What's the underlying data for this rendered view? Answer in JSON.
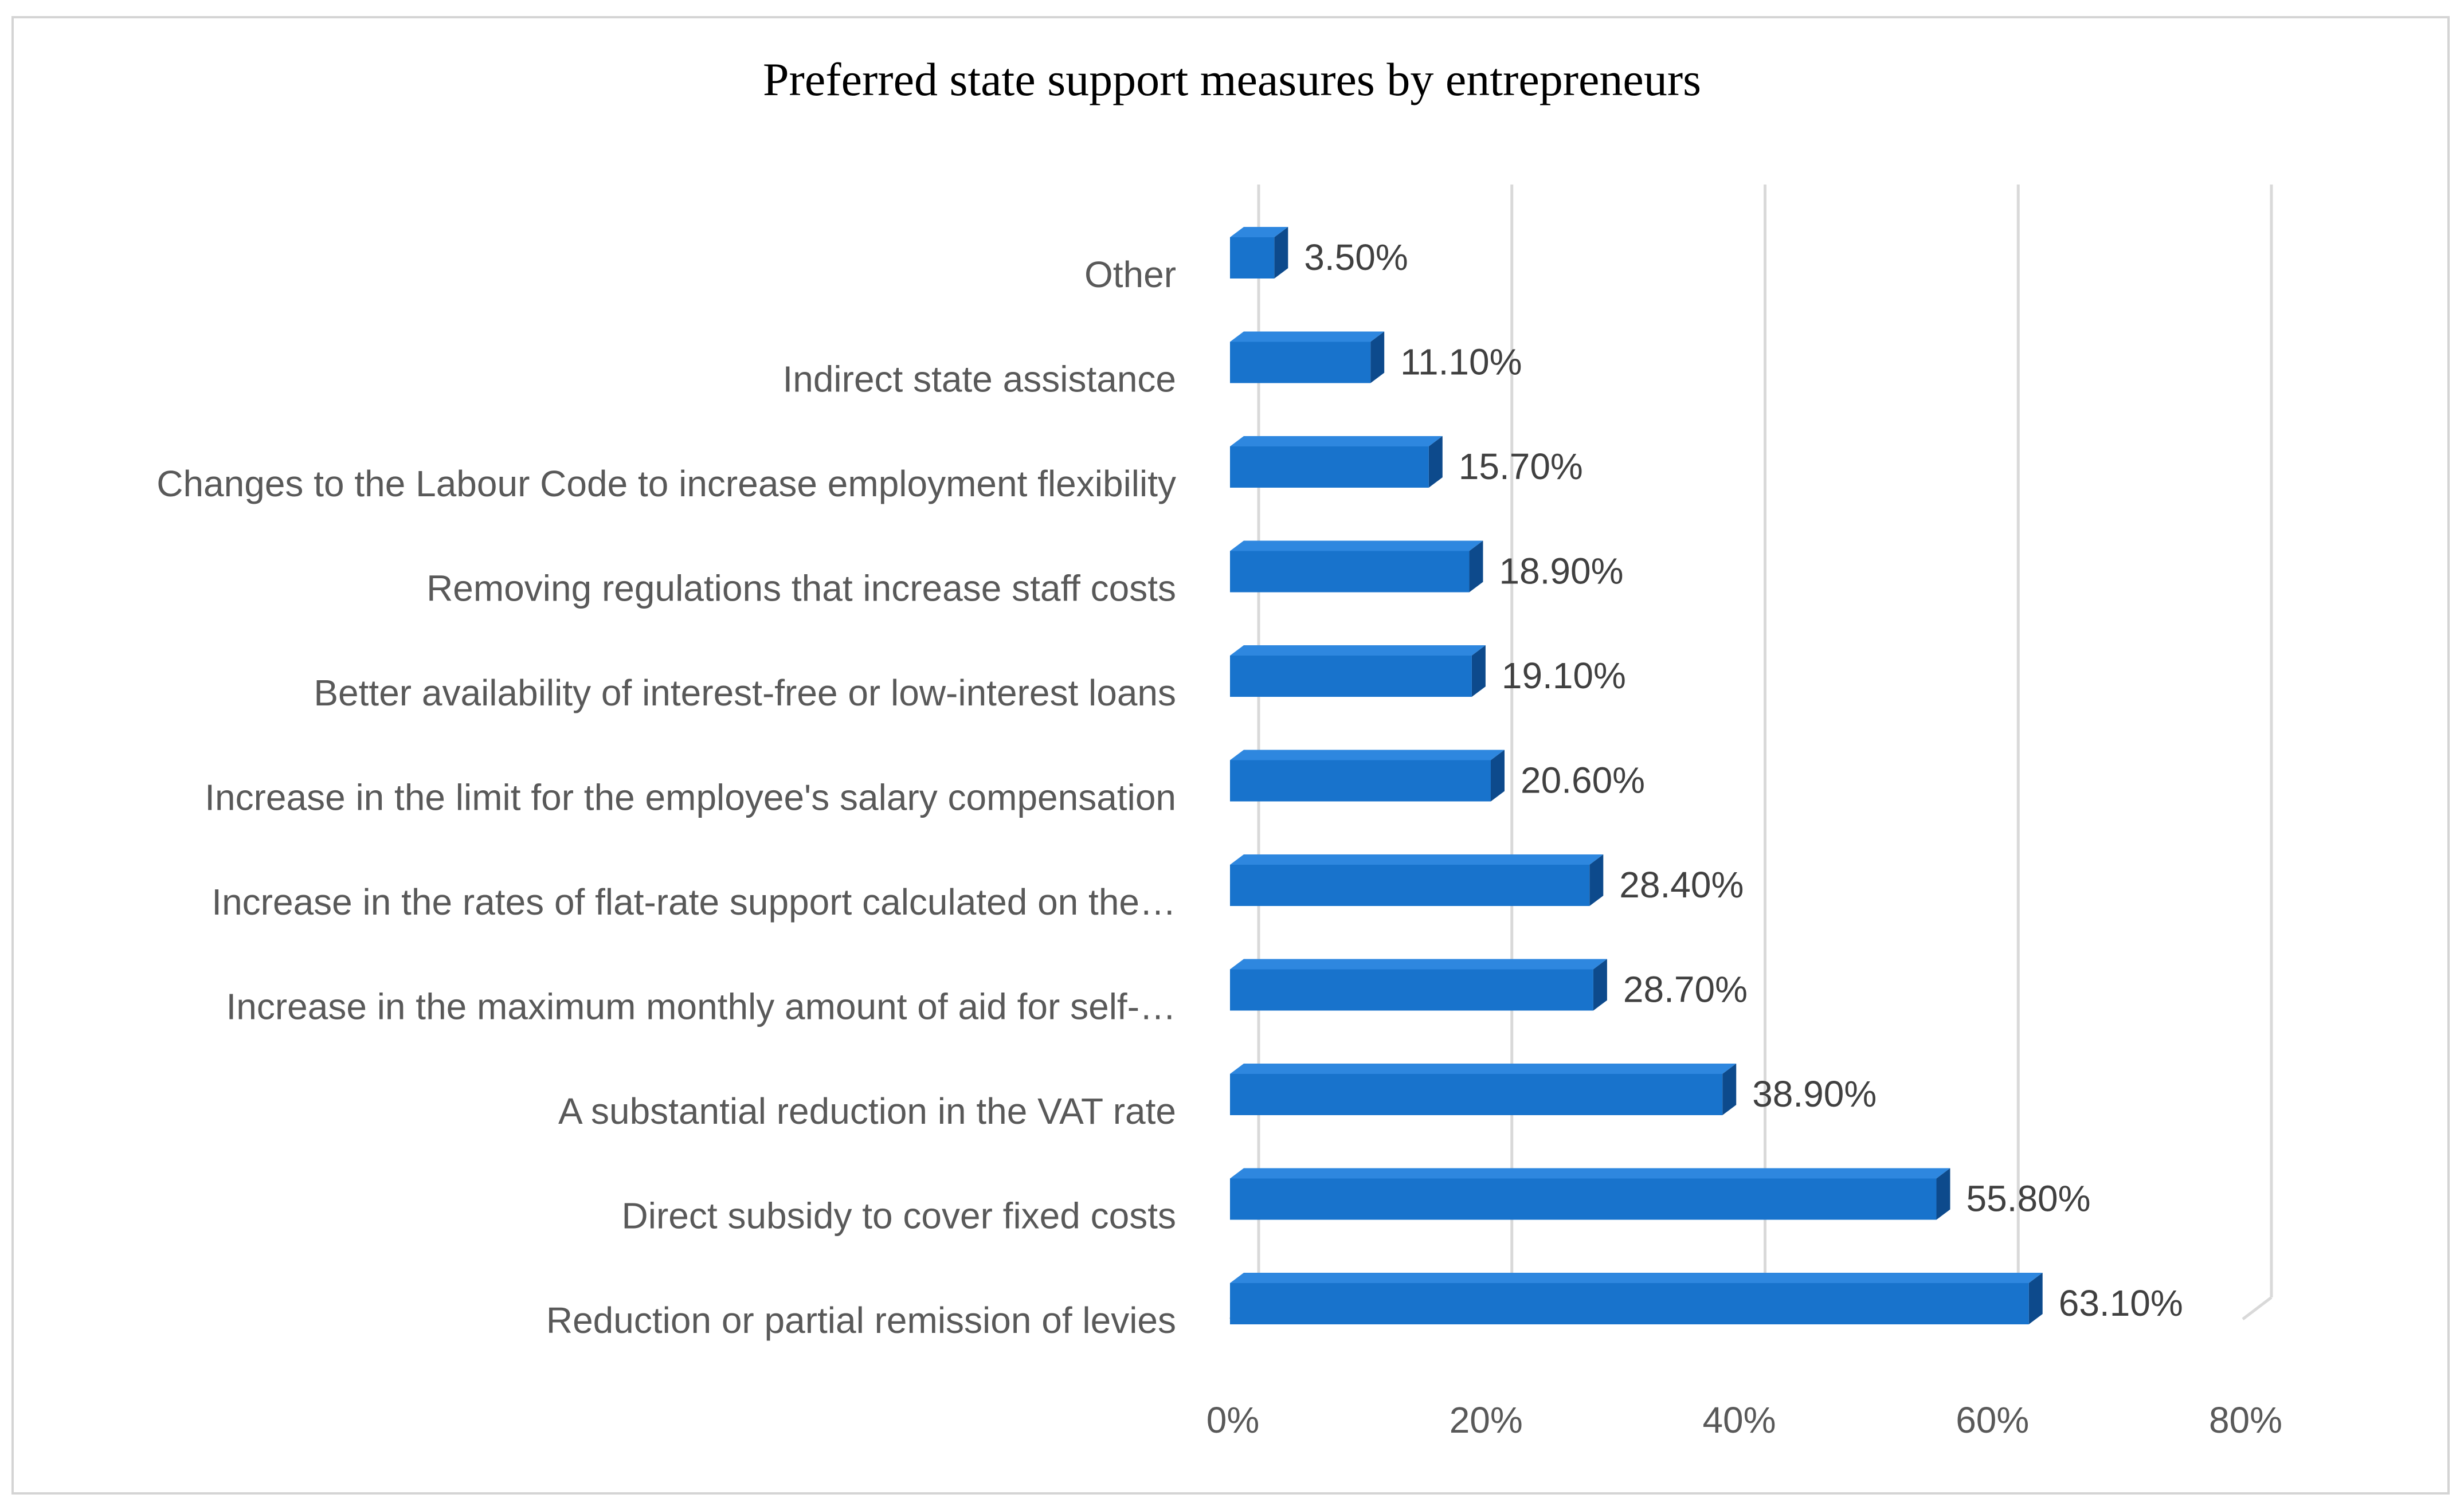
{
  "chart_data": {
    "type": "bar",
    "orientation": "horizontal",
    "style": "3d",
    "title": "Preferred state support measures by entrepreneurs",
    "xlabel": "",
    "ylabel": "",
    "xlim": [
      0,
      80
    ],
    "x_ticks": [
      "0%",
      "20%",
      "40%",
      "60%",
      "80%"
    ],
    "tick_values": [
      0,
      20,
      40,
      60,
      80
    ],
    "grid": true,
    "legend": "none",
    "bar_color": "#1873cc",
    "bar_top_color": "#2e87df",
    "bar_side_color": "#0d4a8c",
    "categories": [
      "Other",
      "Indirect state assistance",
      "Changes to the Labour Code to increase employment flexibility",
      "Removing regulations that increase staff costs",
      "Better availability of interest-free or low-interest loans",
      "Increase in the limit for the employee's salary compensation",
      "Increase in the rates of flat-rate support calculated on the…",
      "Increase in the maximum monthly amount of aid for self-…",
      "A substantial reduction in the VAT rate",
      "Direct subsidy to cover fixed costs",
      "Reduction or partial remission of levies"
    ],
    "values": [
      3.5,
      11.1,
      15.7,
      18.9,
      19.1,
      20.6,
      28.4,
      28.7,
      38.9,
      55.8,
      63.1
    ],
    "value_labels": [
      "3.50%",
      "11.10%",
      "15.70%",
      "18.90%",
      "19.10%",
      "20.60%",
      "28.40%",
      "28.70%",
      "38.90%",
      "55.80%",
      "63.10%"
    ]
  }
}
